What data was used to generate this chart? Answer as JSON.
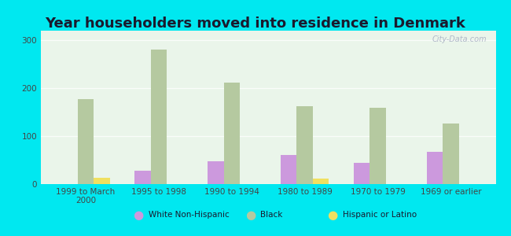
{
  "title": "Year householders moved into residence in Denmark",
  "categories": [
    "1999 to March\n2000",
    "1995 to 1998",
    "1990 to 1994",
    "1980 to 1989",
    "1970 to 1979",
    "1969 or earlier"
  ],
  "white_values": [
    0,
    28,
    47,
    60,
    45,
    67
  ],
  "black_values": [
    177,
    280,
    212,
    162,
    160,
    127
  ],
  "hispanic_values": [
    13,
    0,
    0,
    12,
    0,
    0
  ],
  "white_color": "#cc99dd",
  "black_color": "#b5c9a0",
  "hispanic_color": "#f0e060",
  "plot_bg_color": "#eaf5ea",
  "outer_bg_color": "#00e8f0",
  "bar_width": 0.22,
  "ylim": [
    0,
    320
  ],
  "yticks": [
    0,
    100,
    200,
    300
  ],
  "title_fontsize": 13,
  "tick_fontsize": 7.5,
  "legend_labels": [
    "White Non-Hispanic",
    "Black",
    "Hispanic or Latino"
  ],
  "watermark": "City-Data.com"
}
